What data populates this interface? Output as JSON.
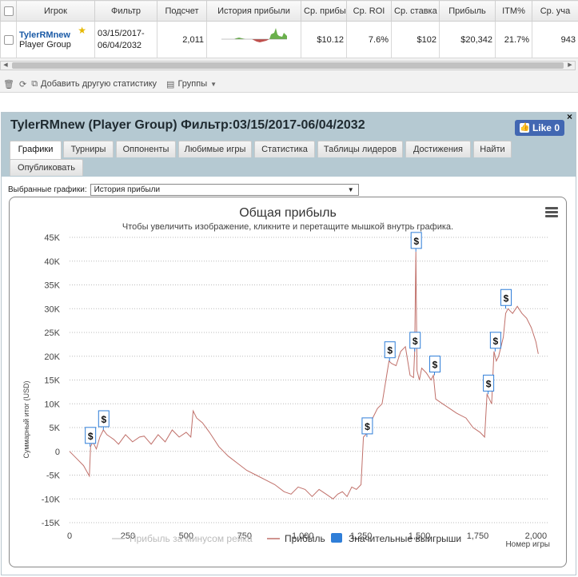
{
  "stats": {
    "headers": [
      "",
      "Игрок",
      "Фильтр",
      "Подсчет",
      "История прибыли",
      "Ср. прибы",
      "Ср. ROI",
      "Ср. ставка",
      "Прибыль",
      "ITM%",
      "Ср. уча"
    ],
    "row": {
      "player_name": "TylerRMnew",
      "player_group": "Player Group",
      "filter_line1": "03/15/2017-",
      "filter_line2": "06/04/2032",
      "count": "2,011",
      "avg_profit": "$10.12",
      "avg_roi": "7.6%",
      "avg_stake": "$102",
      "profit": "$20,342",
      "itm": "21.7%",
      "avg_entrants": "943"
    }
  },
  "toolbar": {
    "add_label": "Добавить другую статистику",
    "groups_label": "Группы"
  },
  "panel": {
    "title": "TylerRMnew (Player Group) Фильтр:03/15/2017-06/04/2032",
    "like_label": "Like 0",
    "close_label": "×",
    "tabs": [
      "Графики",
      "Турниры",
      "Оппоненты",
      "Любимые игры",
      "Статистика",
      "Таблицы лидеров",
      "Достижения",
      "Найти",
      "Опубликовать"
    ],
    "active_tab": 0,
    "select_label": "Выбранные графики:",
    "select_value": "История прибыли"
  },
  "chart_data": {
    "type": "line",
    "title": "Общая прибыль",
    "subtitle": "Чтобы увеличить изображение, кликните и перетащите мышкой внутрь графика.",
    "xlabel": "Номер игры",
    "ylabel": "Суммарный итог (USD)",
    "xlim": [
      0,
      2050
    ],
    "ylim": [
      -15000,
      45000
    ],
    "xticks": [
      0,
      250,
      500,
      750,
      1000,
      1250,
      1500,
      1750,
      2000
    ],
    "xtick_labels": [
      "0",
      "250",
      "500",
      "750",
      "1,000",
      "1,250",
      "1,500",
      "1,750",
      "2,000"
    ],
    "yticks": [
      -15000,
      -10000,
      -5000,
      0,
      5000,
      10000,
      15000,
      20000,
      25000,
      30000,
      35000,
      40000,
      45000
    ],
    "ytick_labels": [
      "-15K",
      "-10K",
      "-5K",
      "0",
      "5K",
      "10K",
      "15K",
      "20K",
      "25K",
      "30K",
      "35K",
      "40K",
      "45K"
    ],
    "grid": "horizontal dotted",
    "legend": [
      "Прибыль за минусом рейка",
      "Прибыль",
      "Значительные выигрыши"
    ],
    "legend_colors": [
      "#cccccc",
      "#c0706a",
      "#2f7ed8"
    ],
    "series": [
      {
        "name": "Прибыль",
        "color": "#c0706a",
        "x": [
          0,
          30,
          60,
          85,
          90,
          100,
          115,
          130,
          145,
          160,
          175,
          190,
          210,
          240,
          270,
          300,
          320,
          350,
          380,
          410,
          440,
          470,
          500,
          520,
          530,
          545,
          570,
          600,
          640,
          680,
          720,
          760,
          800,
          840,
          880,
          920,
          950,
          980,
          1010,
          1040,
          1070,
          1100,
          1130,
          1150,
          1170,
          1190,
          1210,
          1230,
          1250,
          1260,
          1270,
          1280,
          1300,
          1320,
          1340,
          1360,
          1370,
          1380,
          1400,
          1420,
          1440,
          1460,
          1475,
          1480,
          1485,
          1490,
          1495,
          1500,
          1510,
          1530,
          1550,
          1560,
          1570,
          1600,
          1630,
          1660,
          1700,
          1730,
          1760,
          1780,
          1790,
          1800,
          1810,
          1820,
          1830,
          1840,
          1850,
          1860,
          1870,
          1880,
          1900,
          1920,
          1940,
          1960,
          1980,
          2000,
          2010
        ],
        "values": [
          0,
          -1500,
          -3000,
          -5200,
          1000,
          2000,
          500,
          3000,
          4500,
          3500,
          3000,
          2500,
          1500,
          3500,
          2000,
          3000,
          3200,
          1500,
          3500,
          2000,
          4500,
          3000,
          4000,
          3000,
          8500,
          7000,
          6000,
          4000,
          1000,
          -1000,
          -2500,
          -4000,
          -5000,
          -6000,
          -7000,
          -8500,
          -9000,
          -7500,
          -8000,
          -9500,
          -8000,
          -9000,
          -10000,
          -9000,
          -8500,
          -9500,
          -7500,
          -8000,
          -7000,
          3000,
          3500,
          5000,
          7000,
          9000,
          10000,
          16000,
          19000,
          18500,
          18000,
          21000,
          22000,
          16000,
          15500,
          21000,
          42000,
          17000,
          16000,
          15000,
          17500,
          16500,
          15000,
          16000,
          11000,
          10000,
          9000,
          8000,
          7000,
          5000,
          4000,
          3000,
          12000,
          11000,
          10000,
          21000,
          19000,
          20000,
          22000,
          24000,
          29000,
          30000,
          29000,
          30500,
          29000,
          28000,
          26000,
          23000,
          20500
        ]
      }
    ],
    "markers": [
      {
        "x": 88,
        "y": 1000,
        "label": "$"
      },
      {
        "x": 145,
        "y": 4500,
        "label": "$"
      },
      {
        "x": 1275,
        "y": 3000,
        "label": "$"
      },
      {
        "x": 1372,
        "y": 19000,
        "label": "$"
      },
      {
        "x": 1485,
        "y": 42000,
        "label": "$"
      },
      {
        "x": 1480,
        "y": 21000,
        "label": "$"
      },
      {
        "x": 1565,
        "y": 16000,
        "label": "$"
      },
      {
        "x": 1795,
        "y": 12000,
        "label": "$"
      },
      {
        "x": 1825,
        "y": 21000,
        "label": "$"
      },
      {
        "x": 1870,
        "y": 30000,
        "label": "$"
      }
    ]
  }
}
